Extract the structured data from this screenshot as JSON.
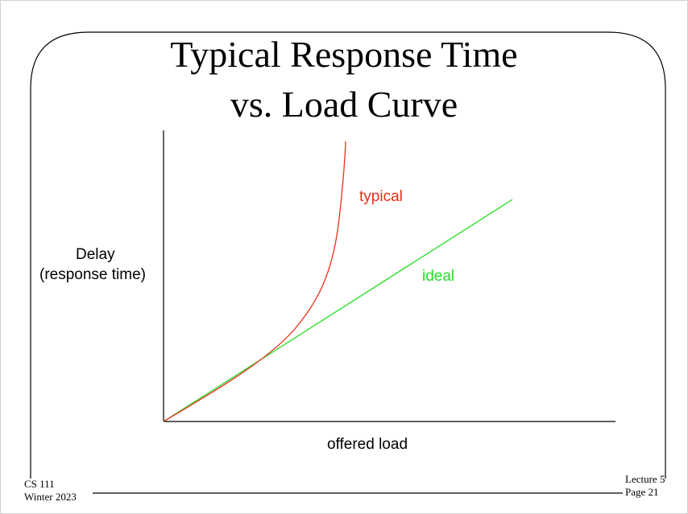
{
  "slide": {
    "title_line1": "Typical Response Time",
    "title_line2": "vs. Load Curve"
  },
  "diagram": {
    "y_axis_label_line1": "Delay",
    "y_axis_label_line2": "(response time)",
    "x_axis_label": "offered load",
    "curve_typical_label": "typical",
    "curve_ideal_label": "ideal",
    "colors": {
      "typical": "#e8311a",
      "ideal": "#22dd22",
      "axes": "#000000"
    }
  },
  "footer": {
    "course": "CS 111",
    "term": "Winter 2023",
    "lecture": "Lecture 5",
    "page": "Page 21"
  }
}
